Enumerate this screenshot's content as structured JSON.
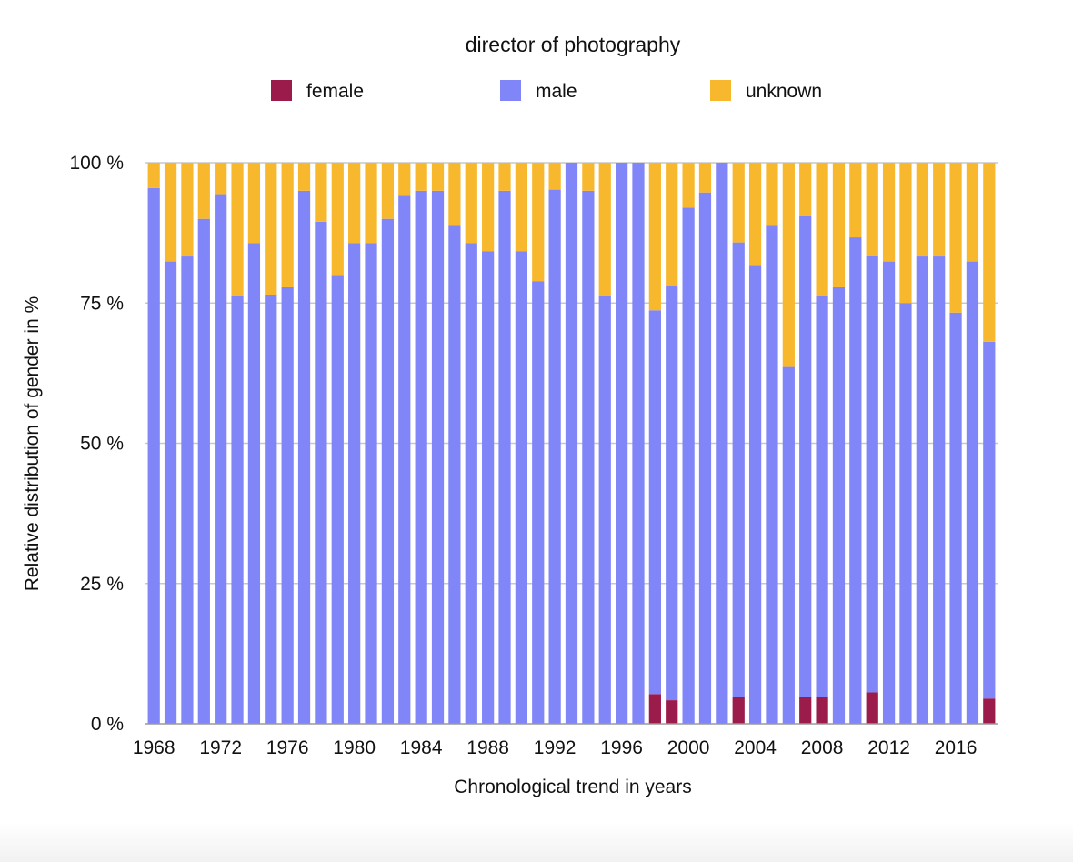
{
  "chart_data": {
    "type": "bar",
    "stacked": true,
    "title": "director of photography",
    "xlabel": "Chronological trend in years",
    "ylabel": "Relative distribution of gender in %",
    "ylim": [
      0,
      100
    ],
    "yticks": [
      0,
      25,
      50,
      75,
      100
    ],
    "ytick_labels": [
      "0 %",
      "25 %",
      "50 %",
      "75 %",
      "100 %"
    ],
    "grid": true,
    "legend_position": "top",
    "categories": [
      1968,
      1969,
      1970,
      1971,
      1972,
      1973,
      1974,
      1975,
      1976,
      1977,
      1978,
      1979,
      1980,
      1981,
      1982,
      1983,
      1984,
      1985,
      1986,
      1987,
      1988,
      1989,
      1990,
      1991,
      1992,
      1993,
      1994,
      1995,
      1996,
      1997,
      1998,
      1999,
      2000,
      2001,
      2002,
      2003,
      2004,
      2005,
      2006,
      2007,
      2008,
      2009,
      2010,
      2011,
      2012,
      2013,
      2014,
      2015,
      2016,
      2017,
      2018
    ],
    "xtick_labels": [
      "1968",
      "1972",
      "1976",
      "1980",
      "1984",
      "1988",
      "1992",
      "1996",
      "2000",
      "2004",
      "2008",
      "2012",
      "2016"
    ],
    "series": [
      {
        "name": "female",
        "color": "#9b1b4b",
        "values": [
          0,
          0,
          0,
          0,
          0,
          0,
          0,
          0,
          0,
          0,
          0,
          0,
          0,
          0,
          0,
          0,
          0,
          0,
          0,
          0,
          0,
          0,
          0,
          0,
          0,
          0,
          0,
          0,
          0,
          0,
          5.3,
          4.2,
          0,
          0,
          0,
          4.8,
          0,
          0,
          0,
          4.8,
          4.8,
          0,
          0,
          5.6,
          0,
          0,
          0,
          0,
          0,
          0,
          4.5
        ]
      },
      {
        "name": "male",
        "color": "#8085f8",
        "values": [
          95.5,
          82.4,
          83.3,
          90.0,
          94.4,
          76.2,
          85.7,
          76.5,
          77.8,
          95.0,
          89.5,
          80.0,
          85.7,
          85.7,
          90.0,
          94.1,
          95.0,
          95.0,
          88.9,
          85.7,
          84.2,
          95.0,
          84.2,
          78.9,
          95.2,
          100,
          95.0,
          76.2,
          100,
          100,
          68.4,
          73.9,
          92.0,
          94.7,
          100,
          81.0,
          81.8,
          88.9,
          63.6,
          85.7,
          71.4,
          77.8,
          86.7,
          77.8,
          82.4,
          75.0,
          83.3,
          83.3,
          73.3,
          82.4,
          63.6
        ]
      },
      {
        "name": "unknown",
        "color": "#f8b82e",
        "values": [
          4.5,
          17.6,
          16.7,
          10.0,
          5.6,
          23.8,
          14.3,
          23.5,
          22.2,
          5.0,
          10.5,
          20.0,
          14.3,
          14.3,
          10.0,
          5.9,
          5.0,
          5.0,
          11.1,
          14.3,
          15.8,
          5.0,
          15.8,
          21.1,
          4.8,
          0,
          5.0,
          23.8,
          0,
          0,
          26.3,
          21.9,
          8.0,
          5.3,
          0,
          14.2,
          18.2,
          11.1,
          36.4,
          9.5,
          23.8,
          22.2,
          13.3,
          16.6,
          17.6,
          25.0,
          16.7,
          16.7,
          26.7,
          17.6,
          31.9
        ]
      }
    ]
  }
}
